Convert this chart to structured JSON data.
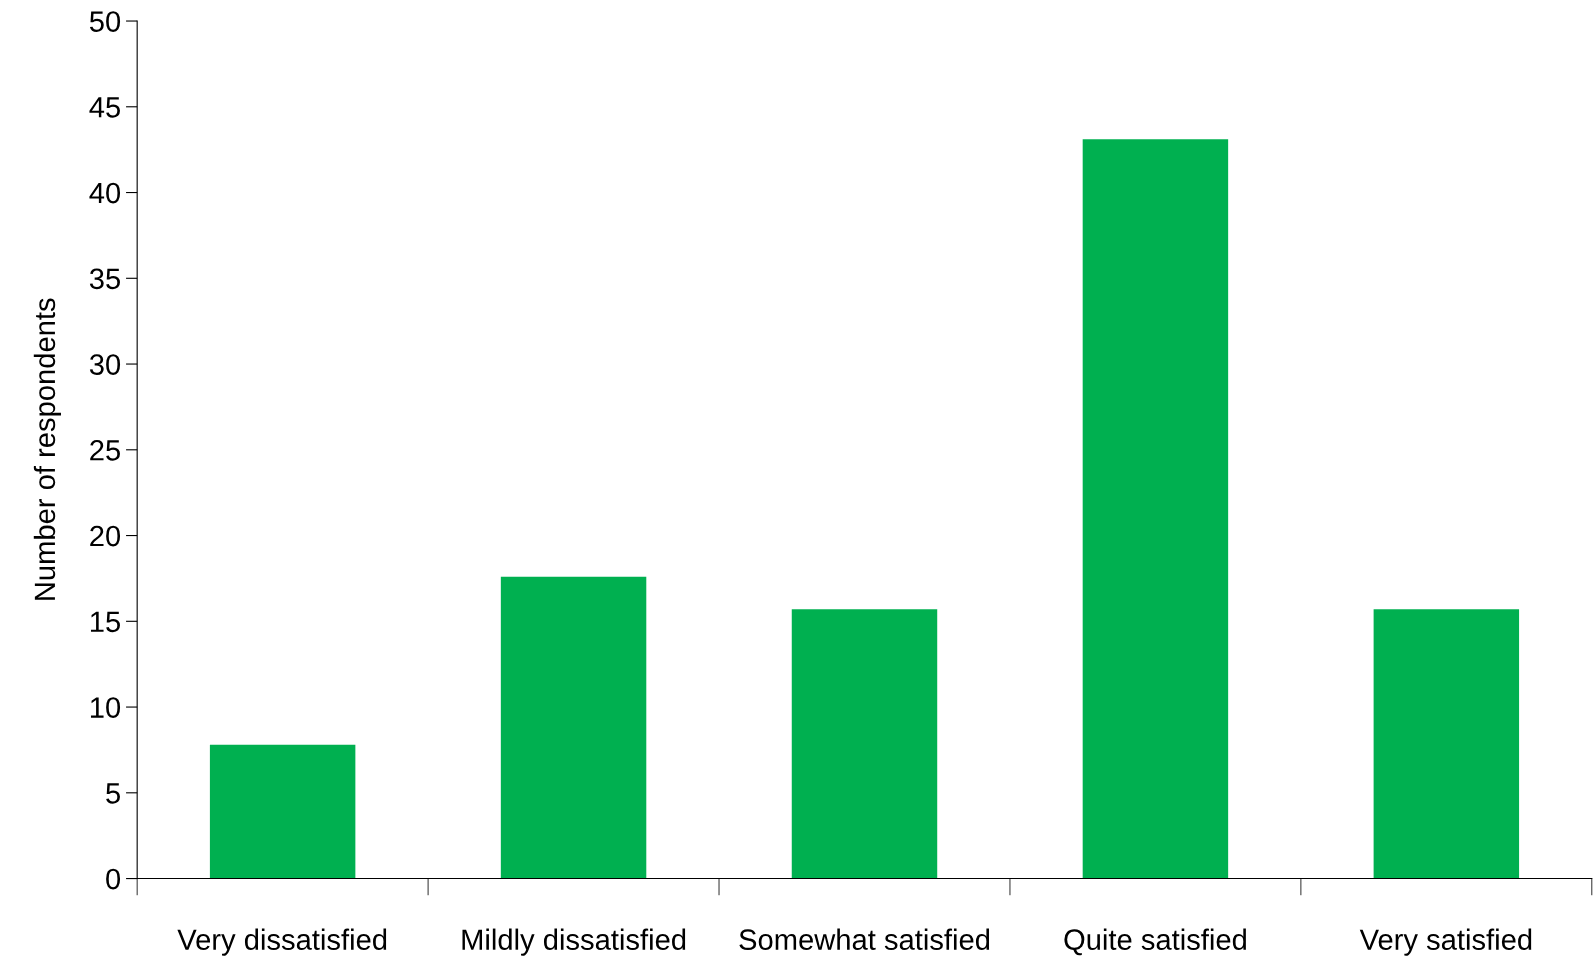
{
  "chart_data": {
    "type": "bar",
    "categories": [
      "Very dissatisfied",
      "Mildly dissatisfied",
      "Somewhat satisfied",
      "Quite satisfied",
      "Very satisfied"
    ],
    "values": [
      7.8,
      17.6,
      15.7,
      43.1,
      15.7
    ],
    "color": "#00b050",
    "ylabel": "Number of respondents",
    "ylim": [
      0,
      50
    ],
    "yticks": [
      0,
      5,
      10,
      15,
      20,
      25,
      30,
      35,
      40,
      45,
      50
    ],
    "grid": false
  }
}
